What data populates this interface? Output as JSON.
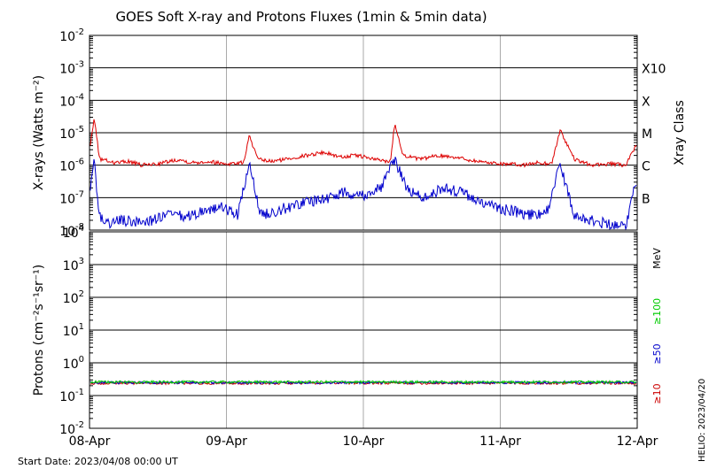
{
  "title": "GOES Soft X-ray and Protons Fluxes   (1min & 5min data)",
  "start_date": "Start Date: 2023/04/08 00:00 UT",
  "credit": "HELIO: 2023/04/20",
  "chart_data": [
    {
      "type": "line",
      "panel": "xray",
      "ylabel": "X-rays (Watts m⁻²)",
      "yscale": "log",
      "ylim": [
        1e-08,
        0.01
      ],
      "y_ticks": [
        {
          "base": "10",
          "exp": "-2"
        },
        {
          "base": "10",
          "exp": "-3"
        },
        {
          "base": "10",
          "exp": "-4"
        },
        {
          "base": "10",
          "exp": "-5"
        },
        {
          "base": "10",
          "exp": "-6"
        },
        {
          "base": "10",
          "exp": "-7"
        },
        {
          "base": "10",
          "exp": "-8"
        }
      ],
      "right_label": "Xray Class",
      "classes": [
        {
          "label": "X10",
          "value": 0.001
        },
        {
          "label": "X",
          "value": 0.0001
        },
        {
          "label": "M",
          "value": 1e-05
        },
        {
          "label": "C",
          "value": 1e-06
        },
        {
          "label": "B",
          "value": 1e-07
        }
      ],
      "x_ticks": [
        "08-Apr",
        "09-Apr",
        "10-Apr",
        "11-Apr",
        "12-Apr"
      ],
      "xlim": [
        "2023-04-08",
        "2023-04-12"
      ],
      "grid": true,
      "series": [
        {
          "color": "#dd0000",
          "x": [
            "2023-04-08T00:00",
            "2023-04-08T00:50",
            "2023-04-08T01:40",
            "2023-04-08T02:00",
            "2023-04-08T04:30",
            "2023-04-08T07:00",
            "2023-04-08T09:00",
            "2023-04-08T12:00",
            "2023-04-08T15:30",
            "2023-04-08T18:00",
            "2023-04-08T21:00",
            "2023-04-09T00:00",
            "2023-04-09T03:00",
            "2023-04-09T04:00",
            "2023-04-09T05:30",
            "2023-04-09T08:00",
            "2023-04-09T11:00",
            "2023-04-09T14:00",
            "2023-04-09T17:00",
            "2023-04-09T20:00",
            "2023-04-09T23:00",
            "2023-04-10T02:00",
            "2023-04-10T04:45",
            "2023-04-10T05:30",
            "2023-04-10T07:00",
            "2023-04-10T10:00",
            "2023-04-10T13:00",
            "2023-04-10T16:00",
            "2023-04-10T19:00",
            "2023-04-10T22:00",
            "2023-04-11T01:00",
            "2023-04-11T04:00",
            "2023-04-11T06:30",
            "2023-04-11T09:00",
            "2023-04-11T10:30",
            "2023-04-11T13:00",
            "2023-04-11T16:00",
            "2023-04-11T19:00",
            "2023-04-11T22:00",
            "2023-04-11T23:50"
          ],
          "values": [
            3e-06,
            3e-05,
            2e-06,
            1.5e-06,
            1.2e-06,
            1.3e-06,
            1e-06,
            1.1e-06,
            1.5e-06,
            1.2e-06,
            1.3e-06,
            1.1e-06,
            1.2e-06,
            8e-06,
            1.5e-06,
            1.3e-06,
            1.6e-06,
            2e-06,
            2.5e-06,
            1.8e-06,
            2e-06,
            1.5e-06,
            1.3e-06,
            2e-05,
            2e-06,
            1.5e-06,
            2e-06,
            1.8e-06,
            1.4e-06,
            1.2e-06,
            1.1e-06,
            1e-06,
            1.2e-06,
            1.1e-06,
            1.2e-05,
            1.5e-06,
            1e-06,
            1.1e-06,
            1e-06,
            4e-06
          ]
        },
        {
          "color": "#0000cc",
          "x": [
            "2023-04-08T00:00",
            "2023-04-08T00:50",
            "2023-04-08T01:40",
            "2023-04-08T03:00",
            "2023-04-08T05:00",
            "2023-04-08T08:00",
            "2023-04-08T11:00",
            "2023-04-08T14:00",
            "2023-04-08T17:00",
            "2023-04-08T20:00",
            "2023-04-08T23:00",
            "2023-04-09T02:00",
            "2023-04-09T04:00",
            "2023-04-09T06:00",
            "2023-04-09T09:00",
            "2023-04-09T12:00",
            "2023-04-09T15:00",
            "2023-04-09T18:00",
            "2023-04-09T21:00",
            "2023-04-10T00:00",
            "2023-04-10T03:00",
            "2023-04-10T05:30",
            "2023-04-10T08:00",
            "2023-04-10T11:00",
            "2023-04-10T14:00",
            "2023-04-10T17:00",
            "2023-04-10T20:00",
            "2023-04-10T23:00",
            "2023-04-11T02:00",
            "2023-04-11T05:00",
            "2023-04-11T08:00",
            "2023-04-11T10:30",
            "2023-04-11T13:00",
            "2023-04-11T16:00",
            "2023-04-11T19:00",
            "2023-04-11T22:00",
            "2023-04-11T23:50"
          ],
          "values": [
            1e-07,
            1.5e-06,
            3e-08,
            1.5e-08,
            2e-08,
            1.8e-08,
            2e-08,
            3e-08,
            2.5e-08,
            4e-08,
            5e-08,
            3e-08,
            1e-06,
            3e-08,
            4e-08,
            6e-08,
            8e-08,
            1e-07,
            1.5e-07,
            1.2e-07,
            2e-07,
            1.5e-06,
            1.5e-07,
            1e-07,
            2e-07,
            1.5e-07,
            8e-08,
            5e-08,
            4e-08,
            3e-08,
            3e-08,
            1e-06,
            3e-08,
            2e-08,
            1.5e-08,
            1.5e-08,
            3e-07
          ]
        }
      ]
    },
    {
      "type": "line",
      "panel": "protons",
      "ylabel": "Protons (cm⁻²s⁻¹sr⁻¹)",
      "yscale": "log",
      "ylim": [
        0.01,
        10000.0
      ],
      "y_ticks": [
        {
          "base": "10",
          "exp": "4"
        },
        {
          "base": "10",
          "exp": "3"
        },
        {
          "base": "10",
          "exp": "2"
        },
        {
          "base": "10",
          "exp": "1"
        },
        {
          "base": "10",
          "exp": "0"
        },
        {
          "base": "10",
          "exp": "-1"
        },
        {
          "base": "10",
          "exp": "-2"
        }
      ],
      "unit": "MeV",
      "threshold": 10,
      "x_ticks": [
        "08-Apr",
        "09-Apr",
        "10-Apr",
        "11-Apr",
        "12-Apr"
      ],
      "xlim": [
        "2023-04-08",
        "2023-04-12"
      ],
      "grid": true,
      "series": [
        {
          "name": "≥10",
          "color": "#cc0000",
          "x": [
            "2023-04-08",
            "2023-04-12"
          ],
          "values": [
            0.24,
            0.24
          ]
        },
        {
          "name": "≥50",
          "color": "#0000cc",
          "x": [
            "2023-04-08",
            "2023-04-12"
          ],
          "values": [
            0.25,
            0.25
          ]
        },
        {
          "name": "≥100",
          "color": "#00cc00",
          "x": [
            "2023-04-08",
            "2023-04-12"
          ],
          "values": [
            0.26,
            0.26
          ]
        }
      ]
    }
  ]
}
